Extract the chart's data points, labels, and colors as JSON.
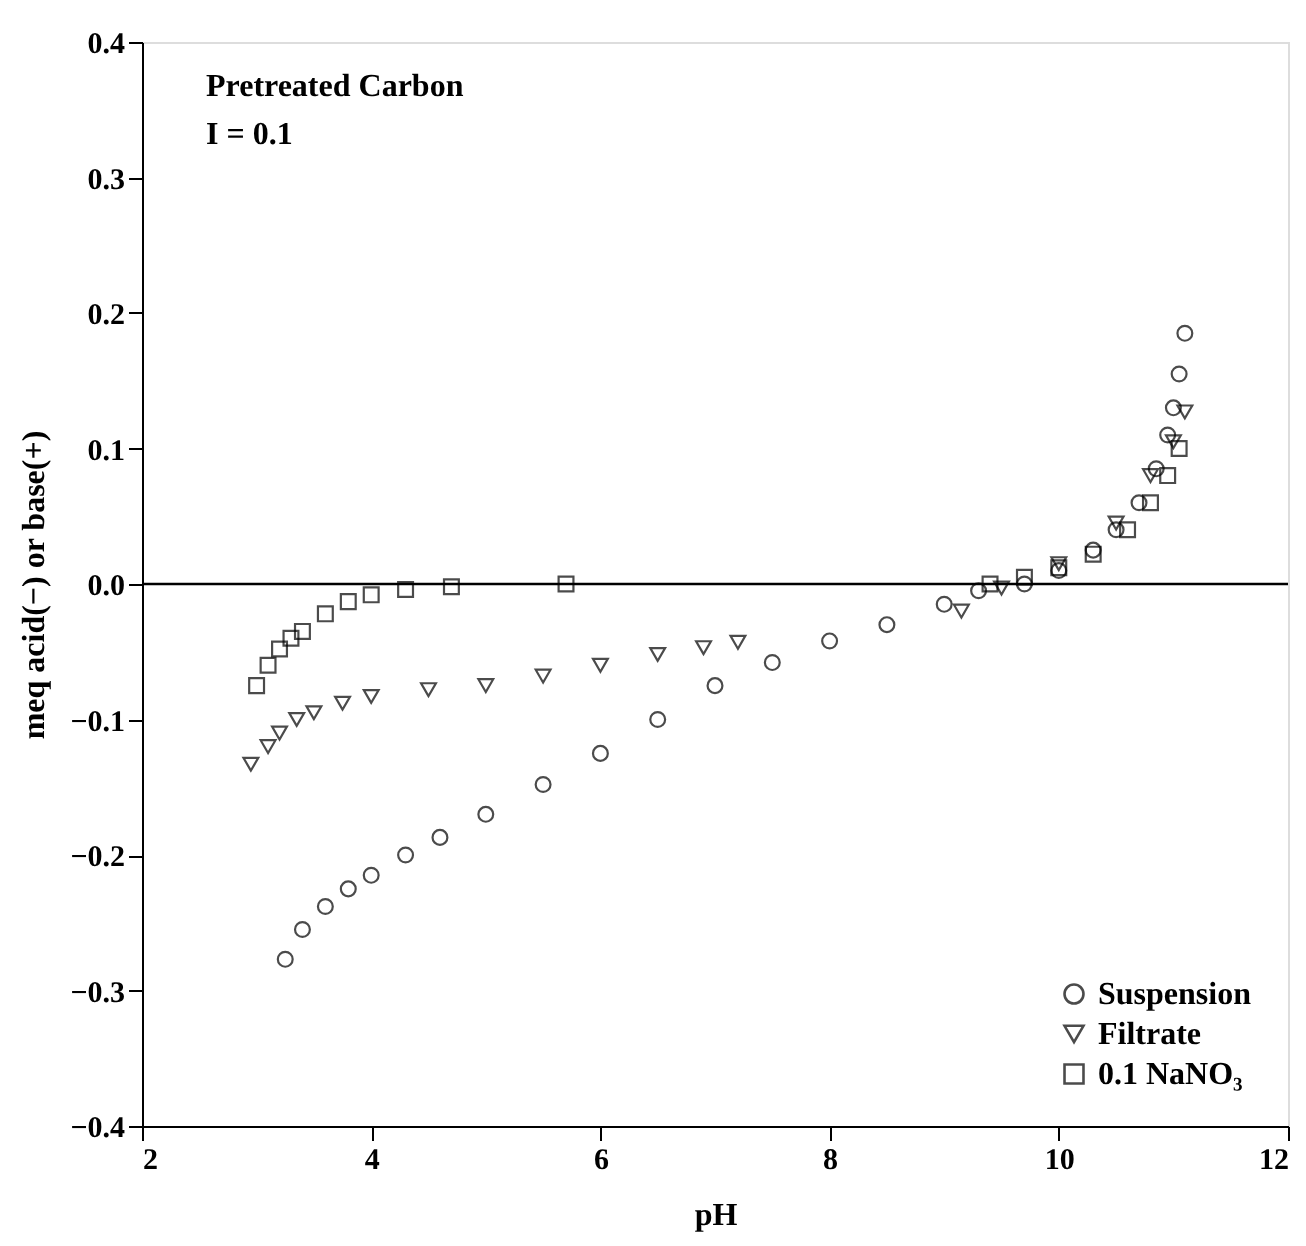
{
  "chart_data": {
    "type": "scatter",
    "xlabel": "pH",
    "ylabel": "meq acid(−) or base(+)",
    "annotations": [
      "Pretreated Carbon",
      "I = 0.1"
    ],
    "xlim": [
      2,
      12
    ],
    "xticks": [
      2,
      4,
      6,
      8,
      10,
      12
    ],
    "ylim": [
      -0.4,
      0.4
    ],
    "yticks": [
      -0.4,
      -0.3,
      -0.2,
      -0.1,
      {
        "value": 0,
        "label": "0.0"
      },
      0.1,
      0.2,
      0.3,
      0.4
    ],
    "legend": "bottom right",
    "grid": false,
    "ref_lines": [
      {
        "axis": "y",
        "value": 0,
        "color": "#000000",
        "line_style": "solid"
      }
    ],
    "series": [
      {
        "name": "Suspension",
        "color": "#000000",
        "marker": "circle",
        "x": [
          3.25,
          3.4,
          3.6,
          3.8,
          4.0,
          4.3,
          4.6,
          5.0,
          5.5,
          6.0,
          6.5,
          7.0,
          7.5,
          8.0,
          8.5,
          9.0,
          9.3,
          9.7,
          10.0,
          10.3,
          10.5,
          10.7,
          10.85,
          10.95,
          11.0,
          11.05,
          11.1
        ],
        "values": [
          -0.277,
          -0.255,
          -0.238,
          -0.225,
          -0.215,
          -0.2,
          -0.187,
          -0.17,
          -0.148,
          -0.125,
          -0.1,
          -0.075,
          -0.058,
          -0.042,
          -0.03,
          -0.015,
          -0.005,
          0.0,
          0.01,
          0.025,
          0.04,
          0.06,
          0.085,
          0.11,
          0.13,
          0.155,
          0.185
        ]
      },
      {
        "name": "Filtrate",
        "color": "#000000",
        "marker": "triangle-down",
        "x": [
          2.95,
          3.1,
          3.2,
          3.35,
          3.5,
          3.75,
          4.0,
          4.5,
          5.0,
          5.5,
          6.0,
          6.5,
          6.9,
          7.2,
          9.15,
          9.5,
          10.0,
          10.5,
          10.8,
          11.0,
          11.1
        ],
        "values": [
          -0.133,
          -0.12,
          -0.11,
          -0.1,
          -0.095,
          -0.088,
          -0.083,
          -0.078,
          -0.075,
          -0.068,
          -0.06,
          -0.052,
          -0.047,
          -0.043,
          -0.02,
          -0.003,
          0.015,
          0.045,
          0.08,
          0.105,
          0.127
        ]
      },
      {
        "name": "0.1 NaNO₃",
        "color": "#000000",
        "marker": "square",
        "x": [
          3.0,
          3.1,
          3.2,
          3.3,
          3.4,
          3.6,
          3.8,
          4.0,
          4.3,
          4.7,
          5.7,
          9.4,
          9.7,
          10.0,
          10.3,
          10.6,
          10.8,
          10.95,
          11.05
        ],
        "values": [
          -0.075,
          -0.06,
          -0.048,
          -0.04,
          -0.035,
          -0.022,
          -0.013,
          -0.008,
          -0.004,
          -0.002,
          0.0,
          0.0,
          0.005,
          0.012,
          0.022,
          0.04,
          0.06,
          0.08,
          0.1
        ]
      }
    ]
  }
}
